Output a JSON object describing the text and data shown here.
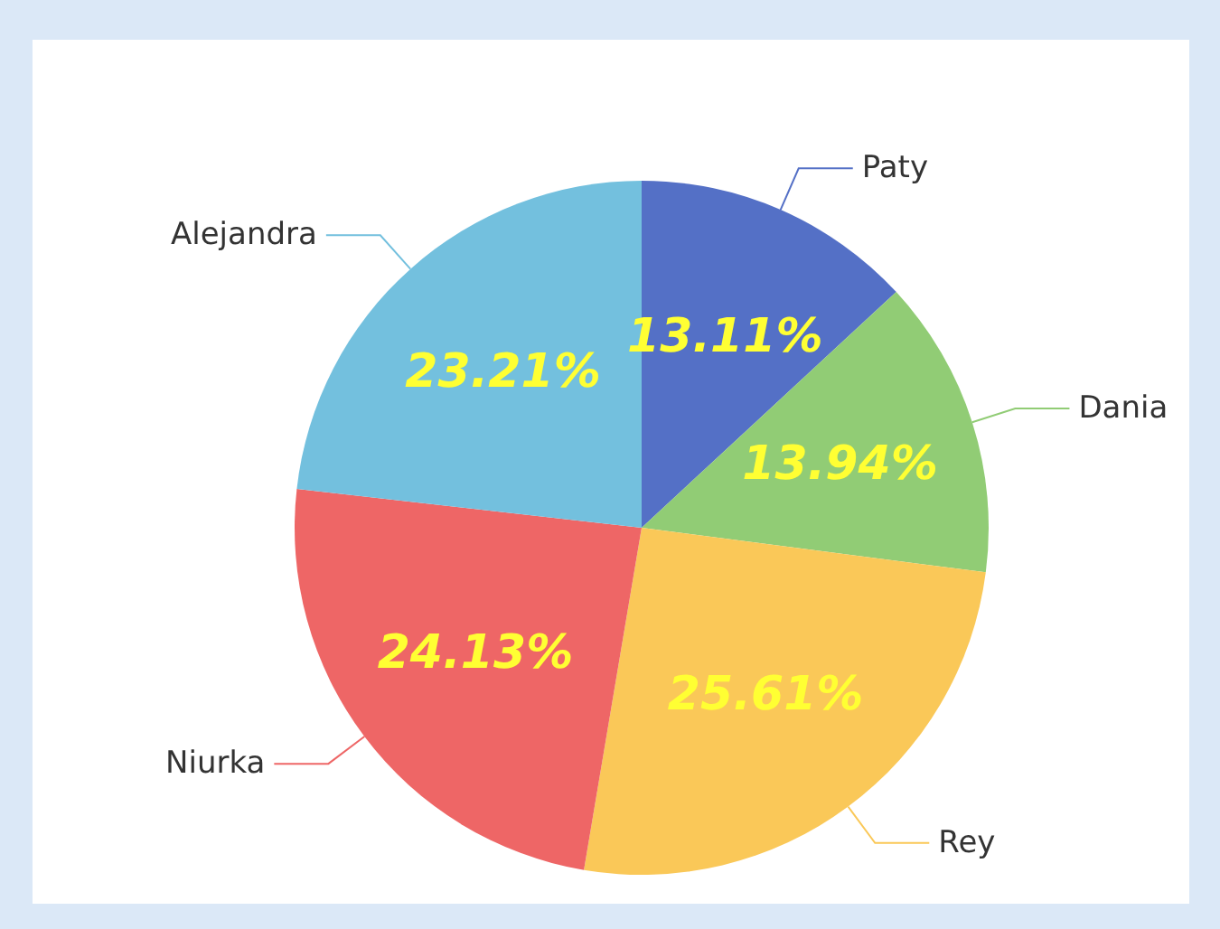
{
  "chart_data": {
    "type": "pie",
    "categories": [
      "Paty",
      "Dania",
      "Rey",
      "Niurka",
      "Alejandra"
    ],
    "values": [
      13.11,
      13.94,
      25.61,
      24.13,
      23.21
    ],
    "colors": [
      "#5470c6",
      "#91cc75",
      "#fac858",
      "#ee6666",
      "#73c0de"
    ],
    "value_labels": [
      "13.11%",
      "13.94%",
      "25.61%",
      "24.13%",
      "23.21%"
    ],
    "legend": false
  }
}
